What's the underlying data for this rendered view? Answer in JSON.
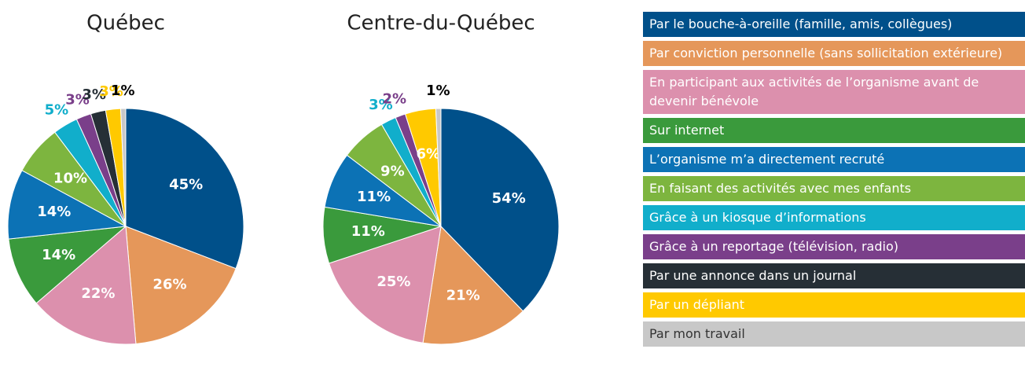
{
  "legend": {
    "items": [
      {
        "name": "Par le bouche-à-oreille (famille, amis, collègues)",
        "color": "#00508a"
      },
      {
        "name": "Par conviction personnelle (sans sollicitation extérieure)",
        "color": "#e5975a"
      },
      {
        "name": "En participant aux activités de l’organisme avant de devenir bénévole",
        "color": "#dc90ad"
      },
      {
        "name": "Sur internet",
        "color": "#3a9a3c"
      },
      {
        "name": "L’organisme m’a directement recruté",
        "color": "#0c72b5"
      },
      {
        "name": "En faisant des activités avec mes enfants",
        "color": "#7db53f"
      },
      {
        "name": "Grâce à un kiosque d’informations",
        "color": "#11aecb"
      },
      {
        "name": "Grâce à un reportage (télévision, radio)",
        "color": "#7a3f8a"
      },
      {
        "name": "Par une annonce dans un journal",
        "color": "#262f36"
      },
      {
        "name": "Par un dépliant",
        "color": "#ffc900"
      },
      {
        "name": "Par mon travail",
        "color": "#c8c8c8"
      }
    ]
  },
  "chart_data": [
    {
      "type": "pie",
      "title": "Québec",
      "values": [
        45,
        26,
        22,
        14,
        14,
        10,
        5,
        3,
        3,
        3,
        1
      ],
      "value_labels": [
        "45%",
        "26%",
        "22%",
        "14%",
        "14%",
        "10%",
        "5%",
        "3%",
        "3%",
        "3%",
        "1%"
      ]
    },
    {
      "type": "pie",
      "title": "Centre-du-Québec",
      "values": [
        54,
        21,
        25,
        11,
        11,
        9,
        3,
        2,
        null,
        6,
        1
      ],
      "value_labels": [
        "54%",
        "21%",
        "25%",
        "11%",
        "11%",
        "9%",
        "3%",
        "2%",
        null,
        "6%",
        "1%"
      ]
    }
  ]
}
